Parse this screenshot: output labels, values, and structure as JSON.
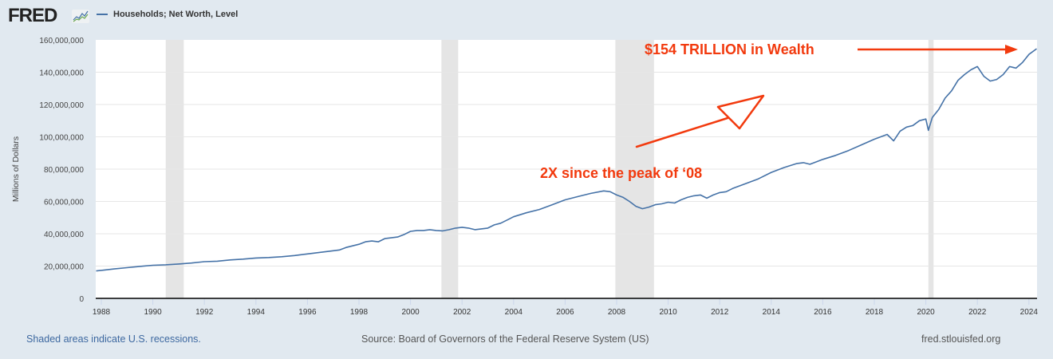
{
  "header": {
    "logo_text": "FRED",
    "logo_icon": "line-chart-icon",
    "legend_label": "Households; Net Worth, Level"
  },
  "footer": {
    "recession_note": "Shaded areas indicate U.S. recessions.",
    "source": "Source: Board of Governors of the Federal Reserve System (US)",
    "site": "fred.stlouisfed.org"
  },
  "colors": {
    "series": "#4572a7",
    "annotation": "#f23a0e",
    "recession": "#e5e5e5",
    "background": "#e1e9f0"
  },
  "chart_data": {
    "type": "line",
    "title": "",
    "xlabel": "",
    "ylabel": "Millions of Dollars",
    "xlim": [
      1987.8,
      2024.3
    ],
    "ylim": [
      0,
      160000000
    ],
    "grid": true,
    "legend": "top-left",
    "y_ticks": [
      "0",
      "20,000,000",
      "40,000,000",
      "60,000,000",
      "80,000,000",
      "100,000,000",
      "120,000,000",
      "140,000,000",
      "160,000,000"
    ],
    "y_tick_values": [
      0,
      20000000,
      40000000,
      60000000,
      80000000,
      100000000,
      120000000,
      140000000,
      160000000
    ],
    "x_ticks": [
      "1988",
      "1990",
      "1992",
      "1994",
      "1996",
      "1998",
      "2000",
      "2002",
      "2004",
      "2006",
      "2008",
      "2010",
      "2012",
      "2014",
      "2016",
      "2018",
      "2020",
      "2022",
      "2024"
    ],
    "recessions": [
      [
        1990.5,
        1991.2
      ],
      [
        2001.2,
        2001.85
      ],
      [
        2007.95,
        2009.45
      ],
      [
        2020.1,
        2020.3
      ]
    ],
    "series": [
      {
        "name": "Households; Net Worth, Level",
        "x": [
          1987.8,
          1988.5,
          1989.0,
          1989.5,
          1990.0,
          1990.5,
          1991.0,
          1991.5,
          1992.0,
          1992.5,
          1993.0,
          1993.5,
          1994.0,
          1994.5,
          1995.0,
          1995.5,
          1996.0,
          1996.5,
          1997.0,
          1997.25,
          1997.5,
          1997.75,
          1998.0,
          1998.25,
          1998.5,
          1998.75,
          1999.0,
          1999.25,
          1999.5,
          1999.75,
          2000.0,
          2000.25,
          2000.5,
          2000.75,
          2001.0,
          2001.25,
          2001.5,
          2001.75,
          2002.0,
          2002.25,
          2002.5,
          2002.75,
          2003.0,
          2003.25,
          2003.5,
          2003.75,
          2004.0,
          2004.5,
          2005.0,
          2005.5,
          2006.0,
          2006.5,
          2007.0,
          2007.5,
          2007.75,
          2008.0,
          2008.25,
          2008.5,
          2008.75,
          2009.0,
          2009.25,
          2009.5,
          2009.75,
          2010.0,
          2010.25,
          2010.5,
          2010.75,
          2011.0,
          2011.25,
          2011.5,
          2011.75,
          2012.0,
          2012.25,
          2012.5,
          2012.75,
          2013.0,
          2013.5,
          2014.0,
          2014.5,
          2015.0,
          2015.25,
          2015.5,
          2015.75,
          2016.0,
          2016.5,
          2017.0,
          2017.5,
          2018.0,
          2018.5,
          2018.75,
          2019.0,
          2019.25,
          2019.5,
          2019.75,
          2020.0,
          2020.1,
          2020.25,
          2020.5,
          2020.75,
          2021.0,
          2021.25,
          2021.5,
          2021.75,
          2022.0,
          2022.25,
          2022.5,
          2022.75,
          2023.0,
          2023.25,
          2023.5,
          2023.75,
          2024.0,
          2024.3
        ],
        "values": [
          17000000,
          18200000,
          19000000,
          19800000,
          20500000,
          20800000,
          21300000,
          21900000,
          22700000,
          23000000,
          23800000,
          24300000,
          25000000,
          25300000,
          25800000,
          26500000,
          27500000,
          28500000,
          29500000,
          30000000,
          31500000,
          32500000,
          33500000,
          35000000,
          35500000,
          35000000,
          37000000,
          37500000,
          38000000,
          39500000,
          41500000,
          42000000,
          42000000,
          42500000,
          42000000,
          41800000,
          42500000,
          43500000,
          44000000,
          43500000,
          42500000,
          43000000,
          43500000,
          45500000,
          46500000,
          48500000,
          50500000,
          53000000,
          55000000,
          58000000,
          61000000,
          63000000,
          65000000,
          66500000,
          66000000,
          64000000,
          62500000,
          60000000,
          57000000,
          55500000,
          56500000,
          58000000,
          58500000,
          59500000,
          59000000,
          61000000,
          62500000,
          63500000,
          64000000,
          62000000,
          64000000,
          65500000,
          66000000,
          68000000,
          69500000,
          71000000,
          74000000,
          78000000,
          81000000,
          83500000,
          84000000,
          83000000,
          84500000,
          86000000,
          88500000,
          91500000,
          95000000,
          98500000,
          101500000,
          97500000,
          103500000,
          106000000,
          107000000,
          110000000,
          111000000,
          104000000,
          112000000,
          117000000,
          124000000,
          128500000,
          135000000,
          138500000,
          141500000,
          143500000,
          137500000,
          134500000,
          135500000,
          138500000,
          143500000,
          142500000,
          146000000,
          151000000,
          154500000
        ]
      }
    ],
    "annotations": [
      {
        "text": "$154 TRILLION in Wealth",
        "type": "text-with-arrow",
        "points_to": "end of series"
      },
      {
        "text": "2X since the peak of ‘08",
        "type": "text"
      },
      {
        "text": "",
        "type": "arrow",
        "direction": "up-right"
      }
    ]
  }
}
